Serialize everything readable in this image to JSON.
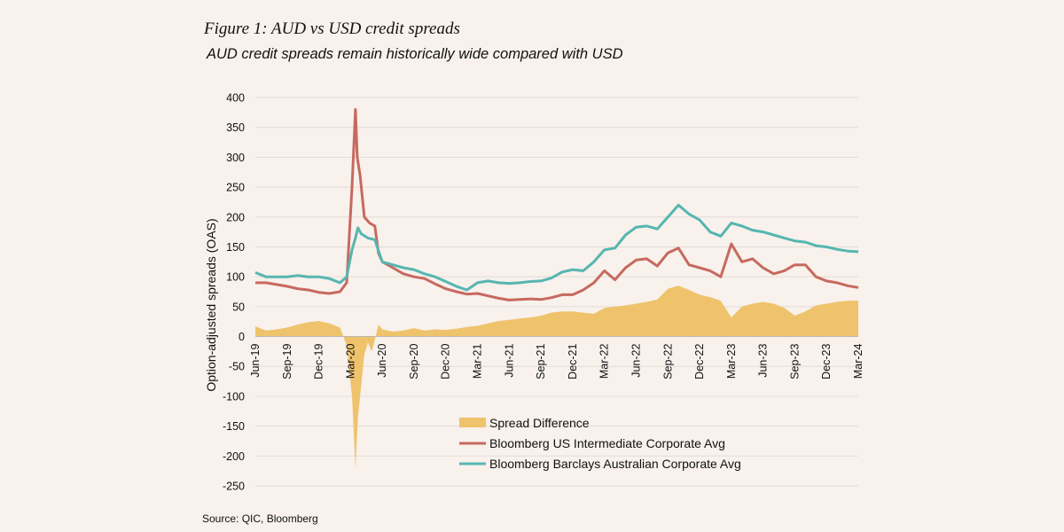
{
  "figure": {
    "title": "Figure 1: AUD vs USD credit spreads",
    "subtitle": "AUD credit spreads remain historically wide compared with USD",
    "source": "Source: QIC, Bloomberg"
  },
  "colors": {
    "background": "#f8f1ec",
    "spread_difference": "#efc36c",
    "us": "#c7695f",
    "aus": "#56b6b1",
    "grid": "#e2dcd7"
  },
  "chart_data": {
    "type": "line+area",
    "xlabel": "",
    "ylabel": "Option-adjusted spreads (OAS)",
    "ylim": [
      -250,
      400
    ],
    "yticks": [
      400,
      350,
      300,
      250,
      200,
      150,
      100,
      50,
      0,
      -50,
      -100,
      -150,
      -200,
      -250
    ],
    "grid": true,
    "legend_position": "bottom-right",
    "x_start": "2019-06",
    "x_end": "2024-03",
    "xtick_labels": [
      "Jun-19",
      "Sep-19",
      "Dec-19",
      "Mar-20",
      "Jun-20",
      "Sep-20",
      "Dec-20",
      "Mar-21",
      "Jun-21",
      "Sep-21",
      "Dec-21",
      "Mar-22",
      "Jun-22",
      "Sep-22",
      "Dec-22",
      "Mar-23",
      "Jun-23",
      "Sep-23",
      "Dec-23",
      "Mar-24"
    ],
    "series": [
      {
        "name": "Spread Difference",
        "kind": "area",
        "color": "#efc36c",
        "points": [
          [
            "2019-06",
            17
          ],
          [
            "2019-07",
            10
          ],
          [
            "2019-08",
            12
          ],
          [
            "2019-09",
            15
          ],
          [
            "2019-10",
            20
          ],
          [
            "2019-11",
            24
          ],
          [
            "2019-12",
            26
          ],
          [
            "2020-01",
            22
          ],
          [
            "2020-02",
            15
          ],
          [
            "2020-02-20",
            -15
          ],
          [
            "2020-03-05",
            -100
          ],
          [
            "2020-03-15",
            -220
          ],
          [
            "2020-03-22",
            -135
          ],
          [
            "2020-03-28",
            -100
          ],
          [
            "2020-04-10",
            -30
          ],
          [
            "2020-04-20",
            -10
          ],
          [
            "2020-05-01",
            -25
          ],
          [
            "2020-05-10",
            -5
          ],
          [
            "2020-05-20",
            20
          ],
          [
            "2020-06",
            12
          ],
          [
            "2020-07",
            8
          ],
          [
            "2020-08",
            10
          ],
          [
            "2020-09",
            14
          ],
          [
            "2020-10",
            10
          ],
          [
            "2020-11",
            12
          ],
          [
            "2020-12",
            11
          ],
          [
            "2021-01",
            13
          ],
          [
            "2021-02",
            16
          ],
          [
            "2021-03",
            18
          ],
          [
            "2021-04",
            22
          ],
          [
            "2021-05",
            26
          ],
          [
            "2021-06",
            28
          ],
          [
            "2021-07",
            30
          ],
          [
            "2021-08",
            32
          ],
          [
            "2021-09",
            35
          ],
          [
            "2021-10",
            40
          ],
          [
            "2021-11",
            42
          ],
          [
            "2021-12",
            42
          ],
          [
            "2022-01",
            40
          ],
          [
            "2022-02",
            38
          ],
          [
            "2022-03",
            48
          ],
          [
            "2022-04",
            50
          ],
          [
            "2022-05",
            52
          ],
          [
            "2022-06",
            55
          ],
          [
            "2022-07",
            58
          ],
          [
            "2022-08",
            62
          ],
          [
            "2022-09",
            80
          ],
          [
            "2022-10",
            85
          ],
          [
            "2022-11",
            78
          ],
          [
            "2022-12",
            70
          ],
          [
            "2023-01",
            66
          ],
          [
            "2023-02",
            60
          ],
          [
            "2023-03",
            32
          ],
          [
            "2023-04",
            50
          ],
          [
            "2023-05",
            55
          ],
          [
            "2023-06",
            58
          ],
          [
            "2023-07",
            55
          ],
          [
            "2023-08",
            48
          ],
          [
            "2023-09",
            35
          ],
          [
            "2023-10",
            42
          ],
          [
            "2023-11",
            52
          ],
          [
            "2023-12",
            55
          ],
          [
            "2024-01",
            58
          ],
          [
            "2024-02",
            60
          ],
          [
            "2024-03",
            60
          ]
        ]
      },
      {
        "name": "Bloomberg US Intermediate Corporate Avg",
        "kind": "line",
        "color": "#c7695f",
        "points": [
          [
            "2019-06",
            90
          ],
          [
            "2019-07",
            90
          ],
          [
            "2019-08",
            87
          ],
          [
            "2019-09",
            84
          ],
          [
            "2019-10",
            80
          ],
          [
            "2019-11",
            78
          ],
          [
            "2019-12",
            74
          ],
          [
            "2020-01",
            72
          ],
          [
            "2020-02",
            75
          ],
          [
            "2020-02-20",
            90
          ],
          [
            "2020-03-05",
            250
          ],
          [
            "2020-03-15",
            380
          ],
          [
            "2020-03-20",
            300
          ],
          [
            "2020-03-28",
            270
          ],
          [
            "2020-04-10",
            200
          ],
          [
            "2020-04-25",
            190
          ],
          [
            "2020-05-10",
            185
          ],
          [
            "2020-05-20",
            140
          ],
          [
            "2020-06",
            125
          ],
          [
            "2020-07",
            115
          ],
          [
            "2020-08",
            105
          ],
          [
            "2020-09",
            100
          ],
          [
            "2020-10",
            97
          ],
          [
            "2020-11",
            88
          ],
          [
            "2020-12",
            80
          ],
          [
            "2021-01",
            75
          ],
          [
            "2021-02",
            71
          ],
          [
            "2021-03",
            72
          ],
          [
            "2021-04",
            68
          ],
          [
            "2021-05",
            64
          ],
          [
            "2021-06",
            61
          ],
          [
            "2021-07",
            62
          ],
          [
            "2021-08",
            63
          ],
          [
            "2021-09",
            62
          ],
          [
            "2021-10",
            65
          ],
          [
            "2021-11",
            70
          ],
          [
            "2021-12",
            70
          ],
          [
            "2022-01",
            78
          ],
          [
            "2022-02",
            90
          ],
          [
            "2022-03",
            110
          ],
          [
            "2022-04",
            95
          ],
          [
            "2022-05",
            115
          ],
          [
            "2022-06",
            128
          ],
          [
            "2022-07",
            130
          ],
          [
            "2022-08",
            118
          ],
          [
            "2022-09",
            140
          ],
          [
            "2022-10",
            148
          ],
          [
            "2022-11",
            120
          ],
          [
            "2022-12",
            115
          ],
          [
            "2023-01",
            110
          ],
          [
            "2023-02",
            100
          ],
          [
            "2023-03",
            155
          ],
          [
            "2023-04",
            125
          ],
          [
            "2023-05",
            130
          ],
          [
            "2023-06",
            115
          ],
          [
            "2023-07",
            105
          ],
          [
            "2023-08",
            110
          ],
          [
            "2023-09",
            120
          ],
          [
            "2023-10",
            120
          ],
          [
            "2023-11",
            100
          ],
          [
            "2023-12",
            93
          ],
          [
            "2024-01",
            90
          ],
          [
            "2024-02",
            85
          ],
          [
            "2024-03",
            82
          ]
        ]
      },
      {
        "name": "Bloomberg Barclays Australian Corporate Avg",
        "kind": "line",
        "color": "#56b6b1",
        "points": [
          [
            "2019-06",
            107
          ],
          [
            "2019-07",
            100
          ],
          [
            "2019-08",
            100
          ],
          [
            "2019-09",
            100
          ],
          [
            "2019-10",
            102
          ],
          [
            "2019-11",
            100
          ],
          [
            "2019-12",
            100
          ],
          [
            "2020-01",
            97
          ],
          [
            "2020-02",
            90
          ],
          [
            "2020-02-20",
            100
          ],
          [
            "2020-03-05",
            145
          ],
          [
            "2020-03-15",
            165
          ],
          [
            "2020-03-22",
            182
          ],
          [
            "2020-04",
            172
          ],
          [
            "2020-04-20",
            165
          ],
          [
            "2020-05-10",
            162
          ],
          [
            "2020-05-25",
            135
          ],
          [
            "2020-06",
            125
          ],
          [
            "2020-07",
            120
          ],
          [
            "2020-08",
            115
          ],
          [
            "2020-09",
            112
          ],
          [
            "2020-10",
            105
          ],
          [
            "2020-11",
            100
          ],
          [
            "2020-12",
            92
          ],
          [
            "2021-01",
            84
          ],
          [
            "2021-02",
            78
          ],
          [
            "2021-03",
            90
          ],
          [
            "2021-04",
            93
          ],
          [
            "2021-05",
            90
          ],
          [
            "2021-06",
            89
          ],
          [
            "2021-07",
            90
          ],
          [
            "2021-08",
            92
          ],
          [
            "2021-09",
            93
          ],
          [
            "2021-10",
            98
          ],
          [
            "2021-11",
            108
          ],
          [
            "2021-12",
            112
          ],
          [
            "2022-01",
            110
          ],
          [
            "2022-02",
            125
          ],
          [
            "2022-03",
            145
          ],
          [
            "2022-04",
            148
          ],
          [
            "2022-05",
            170
          ],
          [
            "2022-06",
            183
          ],
          [
            "2022-07",
            185
          ],
          [
            "2022-08",
            180
          ],
          [
            "2022-09",
            200
          ],
          [
            "2022-10",
            220
          ],
          [
            "2022-11",
            205
          ],
          [
            "2022-12",
            195
          ],
          [
            "2023-01",
            175
          ],
          [
            "2023-02",
            168
          ],
          [
            "2023-03",
            190
          ],
          [
            "2023-04",
            185
          ],
          [
            "2023-05",
            178
          ],
          [
            "2023-06",
            175
          ],
          [
            "2023-07",
            170
          ],
          [
            "2023-08",
            165
          ],
          [
            "2023-09",
            160
          ],
          [
            "2023-10",
            158
          ],
          [
            "2023-11",
            152
          ],
          [
            "2023-12",
            150
          ],
          [
            "2024-01",
            146
          ],
          [
            "2024-02",
            143
          ],
          [
            "2024-03",
            142
          ]
        ]
      }
    ]
  }
}
